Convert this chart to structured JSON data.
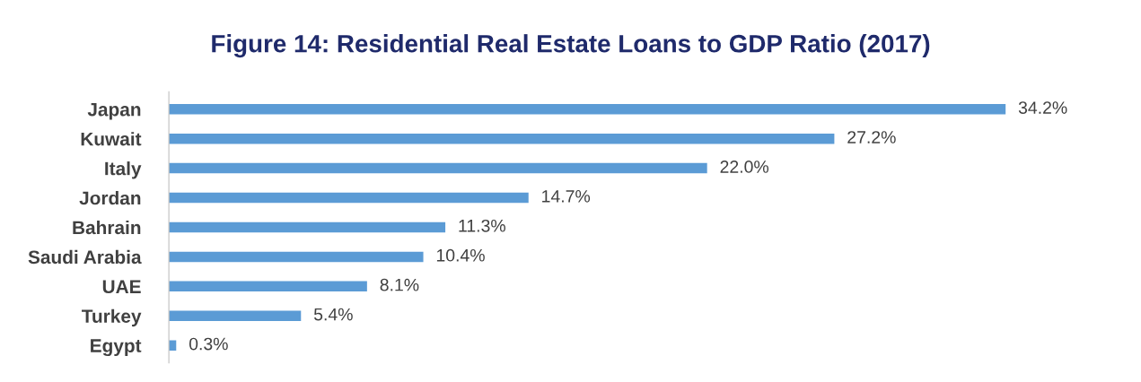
{
  "chart_data": {
    "type": "bar",
    "orientation": "horizontal",
    "title": "Figure 14: Residential Real Estate Loans to GDP Ratio (2017)",
    "categories": [
      "Japan",
      "Kuwait",
      "Italy",
      "Jordan",
      "Bahrain",
      "Saudi Arabia",
      "UAE",
      "Turkey",
      "Egypt"
    ],
    "values": [
      34.2,
      27.2,
      22.0,
      14.7,
      11.3,
      10.4,
      8.1,
      5.4,
      0.3
    ],
    "value_labels": [
      "34.2%",
      "27.2%",
      "22.0%",
      "14.7%",
      "11.3%",
      "10.4%",
      "8.1%",
      "5.4%",
      "0.3%"
    ],
    "color": "#5b9bd5",
    "grid": false
  }
}
